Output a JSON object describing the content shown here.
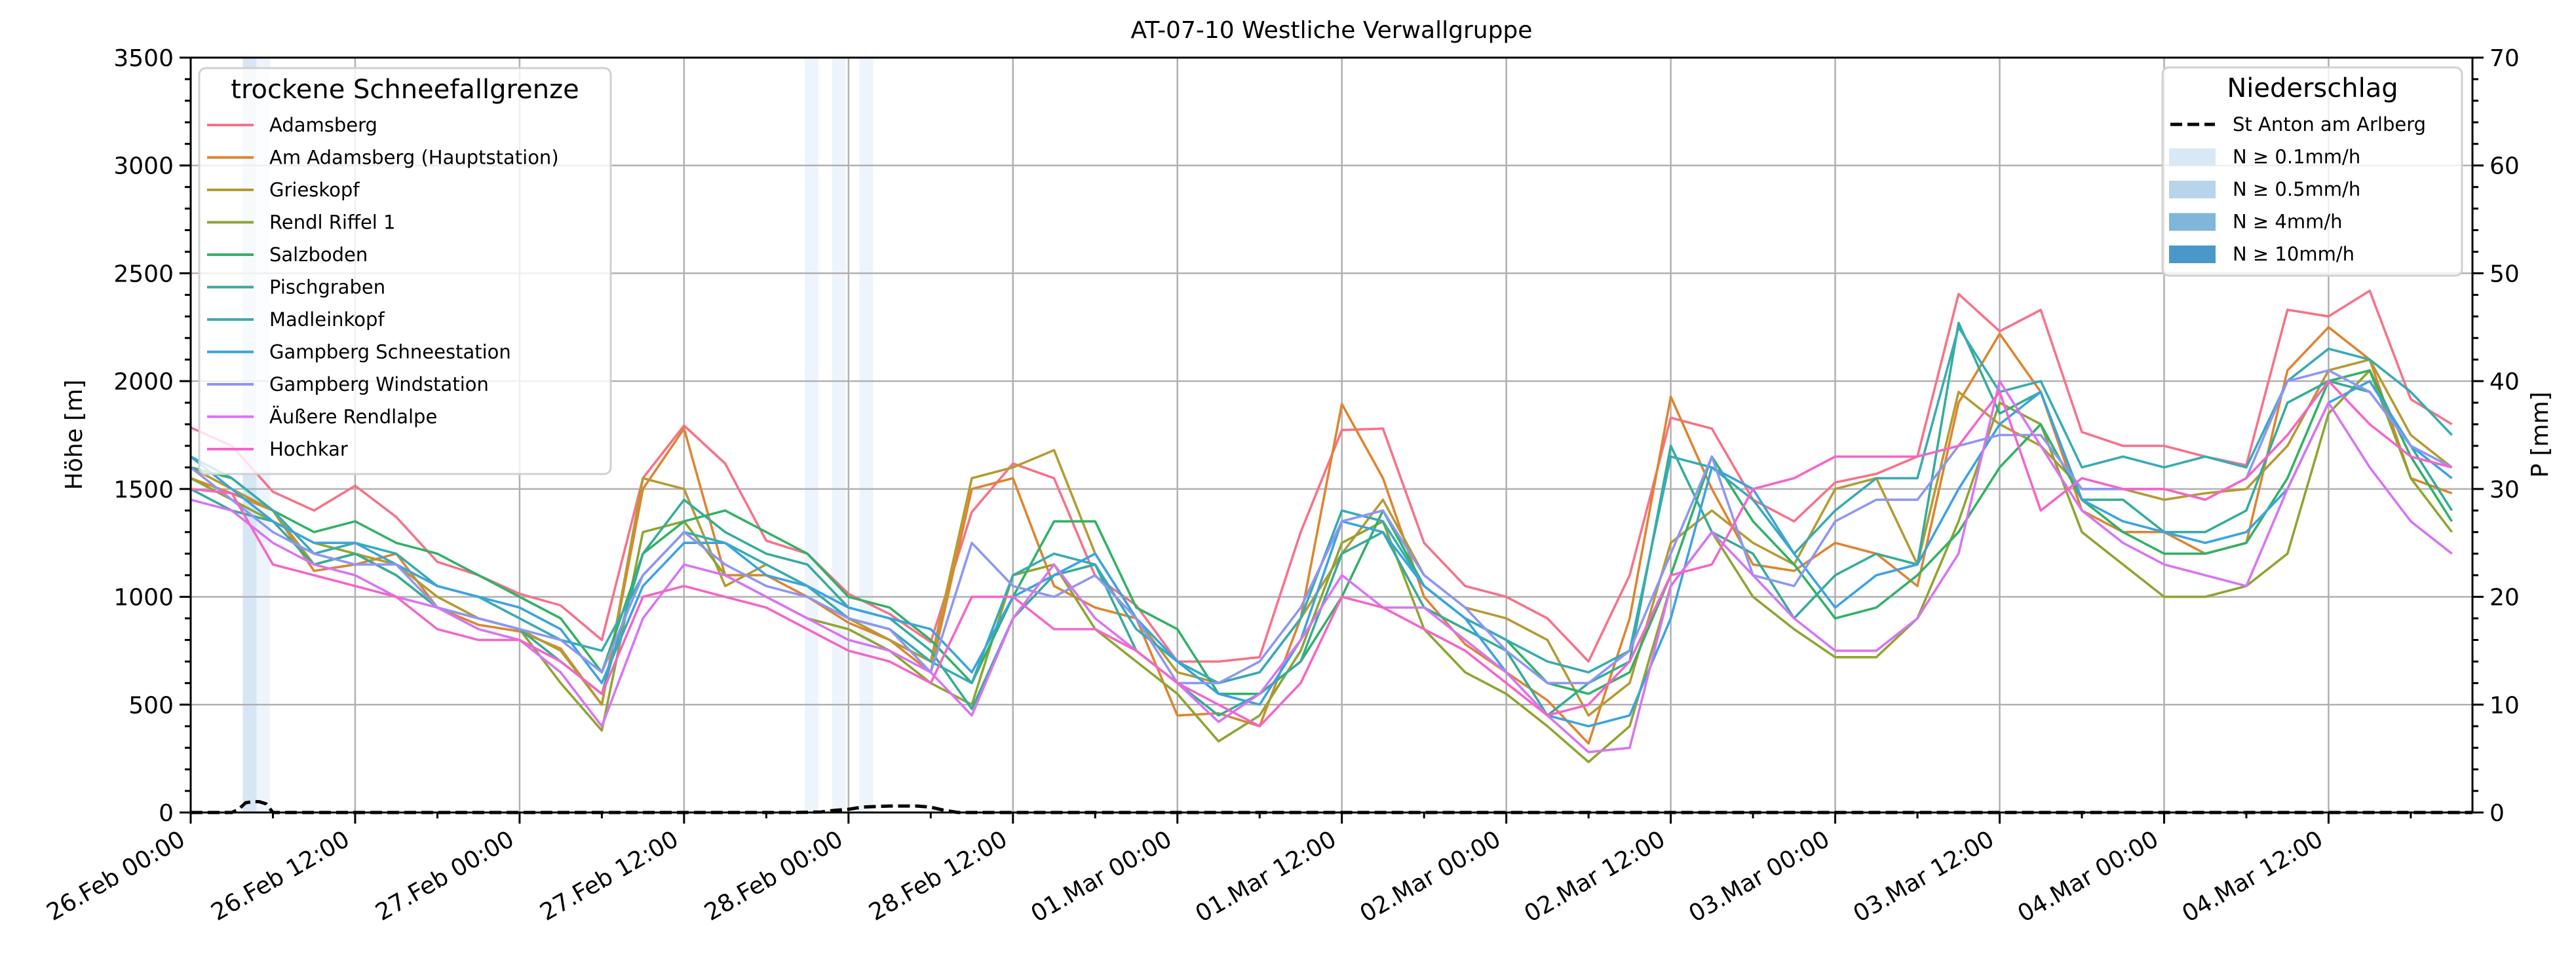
{
  "chart_data": {
    "type": "line",
    "title": "AT-07-10 Westliche Verwallgruppe",
    "ylabel": "Höhe [m]",
    "y2label": "P [mm]",
    "xlabel": "",
    "x_unit": "hours since 26.Feb 00:00",
    "xlim": [
      0,
      166.5
    ],
    "ylim": [
      0,
      3500
    ],
    "y2lim": [
      0,
      70
    ],
    "grid": true,
    "x_ticks": [
      0,
      12,
      24,
      36,
      48,
      60,
      72,
      84,
      96,
      108,
      120,
      132,
      144,
      156
    ],
    "x_tick_labels": [
      "26.Feb 00:00",
      "26.Feb 12:00",
      "27.Feb 00:00",
      "27.Feb 12:00",
      "28.Feb 00:00",
      "28.Feb 12:00",
      "01.Mar 00:00",
      "01.Mar 12:00",
      "02.Mar 00:00",
      "02.Mar 12:00",
      "03.Mar 00:00",
      "03.Mar 12:00",
      "04.Mar 00:00",
      "04.Mar 12:00"
    ],
    "y_ticks": [
      0,
      500,
      1000,
      1500,
      2000,
      2500,
      3000,
      3500
    ],
    "y_tick_labels": [
      "0",
      "500",
      "1000",
      "1500",
      "2000",
      "2500",
      "3000",
      "3500"
    ],
    "y2_ticks": [
      0,
      10,
      20,
      30,
      40,
      50,
      60,
      70
    ],
    "y2_tick_labels": [
      "0",
      "10",
      "20",
      "30",
      "40",
      "50",
      "60",
      "70"
    ],
    "legend_left": {
      "title": "trockene Schneefallgrenze",
      "placement": "upper-left"
    },
    "legend_right": {
      "title": "Niederschlag",
      "placement": "upper-right",
      "items": [
        {
          "label": "St Anton am Arlberg",
          "kind": "dashed",
          "color": "#000000"
        },
        {
          "label": "N ≥ 0.1mm/h",
          "kind": "patch",
          "color": "#d9e8f5"
        },
        {
          "label": "N ≥ 0.5mm/h",
          "kind": "patch",
          "color": "#b7d4ea"
        },
        {
          "label": "N ≥ 4mm/h",
          "kind": "patch",
          "color": "#7fb6d9"
        },
        {
          "label": "N ≥ 10mm/h",
          "kind": "patch",
          "color": "#4a98c9"
        }
      ]
    },
    "precip_bands": [
      {
        "start": 3.8,
        "end": 4.8,
        "level": "N ≥ 0.5mm/h",
        "color": "#d6e6f4"
      },
      {
        "start": 4.8,
        "end": 5.8,
        "level": "N ≥ 0.1mm/h",
        "color": "#eef4fb"
      },
      {
        "start": 44.8,
        "end": 45.8,
        "level": "N ≥ 0.1mm/h",
        "color": "#eef4fb"
      },
      {
        "start": 46.8,
        "end": 47.8,
        "level": "N ≥ 0.1mm/h",
        "color": "#eef4fb"
      },
      {
        "start": 48.8,
        "end": 49.8,
        "level": "N ≥ 0.1mm/h",
        "color": "#eef4fb"
      }
    ],
    "precip_series": {
      "name": "St Anton am Arlberg",
      "x": [
        0,
        3,
        3.5,
        4,
        4.5,
        5,
        5.5,
        6,
        44,
        46,
        47,
        48,
        49,
        50,
        51,
        52,
        53,
        54,
        55,
        56,
        166.5
      ],
      "values": [
        0,
        0,
        0.3,
        0.9,
        1.0,
        1.0,
        0.8,
        0,
        0,
        0.05,
        0.2,
        0.3,
        0.5,
        0.55,
        0.6,
        0.6,
        0.6,
        0.5,
        0.2,
        0,
        0
      ]
    },
    "x": [
      0,
      3,
      6,
      9,
      12,
      15,
      18,
      21,
      24,
      27,
      30,
      33,
      36,
      39,
      42,
      45,
      48,
      51,
      54,
      57,
      60,
      63,
      66,
      69,
      72,
      75,
      78,
      81,
      84,
      87,
      90,
      93,
      96,
      99,
      102,
      105,
      108,
      111,
      114,
      117,
      120,
      123,
      126,
      129,
      132,
      135,
      138,
      141,
      144,
      147,
      150,
      153,
      156,
      159,
      162,
      165
    ],
    "series": [
      {
        "name": "Adamsberg",
        "color": "#f77189",
        "values": [
          1785,
          1700,
          1487,
          1400,
          1515,
          1370,
          1162,
          1100,
          1014,
          960,
          800,
          1550,
          1794,
          1618,
          1260,
          1200,
          1014,
          920,
          790,
          1393,
          1618,
          1550,
          1096,
          960,
          700,
          700,
          720,
          1300,
          1773,
          1780,
          1250,
          1050,
          1000,
          900,
          700,
          1100,
          1830,
          1780,
          1450,
          1350,
          1530,
          1570,
          1650,
          2404,
          2231,
          2330,
          1764,
          1700,
          1700,
          1650,
          1610,
          2331,
          2300,
          2419,
          1916,
          1800
        ]
      },
      {
        "name": "Am Adamsberg (Hauptstation)",
        "color": "#de8430",
        "values": [
          1550,
          1480,
          1400,
          1120,
          1150,
          1200,
          950,
          870,
          840,
          760,
          500,
          1500,
          1780,
          1100,
          1100,
          1000,
          880,
          800,
          650,
          1500,
          1550,
          1050,
          950,
          900,
          450,
          460,
          400,
          900,
          1894,
          1550,
          1000,
          780,
          650,
          520,
          320,
          900,
          1928,
          1500,
          1150,
          1120,
          1250,
          1200,
          1050,
          1900,
          2220,
          1950,
          1400,
          1300,
          1300,
          1200,
          1250,
          2050,
          2250,
          2100,
          1550,
          1480
        ]
      },
      {
        "name": "Grieskopf",
        "color": "#b69a31",
        "values": [
          1600,
          1500,
          1400,
          1150,
          1200,
          1150,
          1000,
          900,
          850,
          750,
          500,
          1550,
          1500,
          1050,
          1150,
          1050,
          900,
          800,
          700,
          1550,
          1600,
          1680,
          1200,
          900,
          650,
          600,
          650,
          900,
          1200,
          1450,
          1100,
          950,
          900,
          800,
          450,
          600,
          1250,
          1400,
          1250,
          1150,
          1500,
          1550,
          1150,
          1950,
          1800,
          1700,
          1500,
          1500,
          1450,
          1480,
          1500,
          1700,
          2050,
          2100,
          1750,
          1600
        ]
      },
      {
        "name": "Rendl Riffel 1",
        "color": "#8ea531",
        "values": [
          1550,
          1450,
          1350,
          1250,
          1200,
          1100,
          950,
          900,
          850,
          600,
          380,
          1300,
          1350,
          1100,
          1000,
          900,
          850,
          750,
          600,
          500,
          1100,
          1150,
          850,
          700,
          550,
          330,
          450,
          750,
          1250,
          1350,
          850,
          650,
          550,
          400,
          234,
          400,
          1050,
          1300,
          1000,
          850,
          720,
          720,
          900,
          1350,
          1900,
          1800,
          1300,
          1150,
          1000,
          1000,
          1050,
          1200,
          1850,
          2050,
          1550,
          1300
        ]
      },
      {
        "name": "Salzboden",
        "color": "#32b166",
        "values": [
          1600,
          1550,
          1400,
          1300,
          1350,
          1250,
          1200,
          1100,
          1000,
          900,
          650,
          1200,
          1350,
          1400,
          1300,
          1200,
          1000,
          950,
          800,
          600,
          1000,
          1350,
          1350,
          950,
          850,
          550,
          550,
          700,
          1000,
          1400,
          1050,
          900,
          800,
          600,
          550,
          650,
          1100,
          1650,
          1350,
          1150,
          900,
          950,
          1100,
          1300,
          1600,
          1800,
          1450,
          1300,
          1200,
          1200,
          1250,
          1550,
          2000,
          2050,
          1650,
          1350
        ]
      },
      {
        "name": "Pischgraben",
        "color": "#35ac9a",
        "values": [
          1500,
          1400,
          1350,
          1150,
          1200,
          1100,
          950,
          900,
          850,
          700,
          550,
          1200,
          1450,
          1300,
          1200,
          1150,
          950,
          900,
          750,
          480,
          900,
          1100,
          1150,
          750,
          600,
          450,
          550,
          700,
          1200,
          1300,
          950,
          850,
          750,
          450,
          600,
          700,
          1700,
          1300,
          1200,
          900,
          1100,
          1200,
          1150,
          2270,
          1850,
          1950,
          1450,
          1450,
          1300,
          1300,
          1400,
          1900,
          2000,
          1950,
          1700,
          1400
        ]
      },
      {
        "name": "Madleinkopf",
        "color": "#37abb4",
        "values": [
          1650,
          1550,
          1400,
          1200,
          1250,
          1200,
          1050,
          1000,
          900,
          800,
          750,
          1100,
          1300,
          1250,
          1150,
          1050,
          900,
          850,
          700,
          600,
          1100,
          1200,
          1150,
          850,
          700,
          600,
          650,
          900,
          1400,
          1350,
          1050,
          900,
          800,
          700,
          650,
          750,
          1650,
          1600,
          1450,
          1200,
          1400,
          1550,
          1550,
          2250,
          1950,
          2000,
          1600,
          1650,
          1600,
          1650,
          1600,
          2000,
          2150,
          2100,
          1950,
          1750
        ]
      },
      {
        "name": "Gampberg Schneestation",
        "color": "#3ba3e0",
        "values": [
          1650,
          1500,
          1350,
          1250,
          1250,
          1150,
          1050,
          1000,
          950,
          850,
          600,
          1050,
          1250,
          1250,
          1100,
          1050,
          950,
          900,
          850,
          650,
          1000,
          1100,
          1200,
          900,
          700,
          550,
          500,
          800,
          1350,
          1300,
          1050,
          900,
          650,
          450,
          400,
          450,
          900,
          1600,
          1500,
          1200,
          950,
          1100,
          1150,
          1500,
          1800,
          1950,
          1450,
          1350,
          1300,
          1250,
          1300,
          1500,
          1900,
          2000,
          1700,
          1550
        ]
      },
      {
        "name": "Gampberg Windstation",
        "color": "#8e96f4",
        "values": [
          1600,
          1450,
          1300,
          1200,
          1150,
          1150,
          950,
          900,
          850,
          800,
          650,
          1100,
          1300,
          1150,
          1050,
          1000,
          900,
          850,
          650,
          1250,
          1050,
          1000,
          1100,
          900,
          600,
          600,
          700,
          950,
          1350,
          1400,
          1100,
          950,
          750,
          600,
          600,
          750,
          1200,
          1650,
          1100,
          1050,
          1350,
          1450,
          1450,
          1700,
          1750,
          1750,
          1500,
          1500,
          1500,
          1450,
          1550,
          2000,
          2050,
          1950,
          1700,
          1600
        ]
      },
      {
        "name": "Äußere Rendlalpe",
        "color": "#d874f3",
        "values": [
          1450,
          1400,
          1250,
          1150,
          1100,
          1000,
          950,
          850,
          800,
          650,
          400,
          900,
          1150,
          1100,
          1000,
          900,
          800,
          750,
          650,
          450,
          900,
          1150,
          900,
          750,
          600,
          420,
          550,
          800,
          1100,
          950,
          950,
          800,
          650,
          450,
          280,
          300,
          1050,
          1300,
          1100,
          900,
          750,
          750,
          900,
          1200,
          2000,
          1700,
          1400,
          1250,
          1150,
          1100,
          1050,
          1500,
          1900,
          1600,
          1350,
          1200
        ]
      },
      {
        "name": "Hochkar",
        "color": "#f465c9",
        "values": [
          1500,
          1480,
          1150,
          1100,
          1050,
          1000,
          850,
          800,
          800,
          700,
          550,
          1000,
          1050,
          1000,
          950,
          850,
          750,
          700,
          600,
          1000,
          1000,
          850,
          850,
          750,
          600,
          500,
          400,
          600,
          1000,
          950,
          850,
          750,
          600,
          450,
          500,
          700,
          1100,
          1150,
          1500,
          1550,
          1650,
          1650,
          1650,
          1700,
          1950,
          1400,
          1550,
          1500,
          1500,
          1450,
          1550,
          1750,
          2000,
          1800,
          1650,
          1600
        ]
      }
    ]
  }
}
